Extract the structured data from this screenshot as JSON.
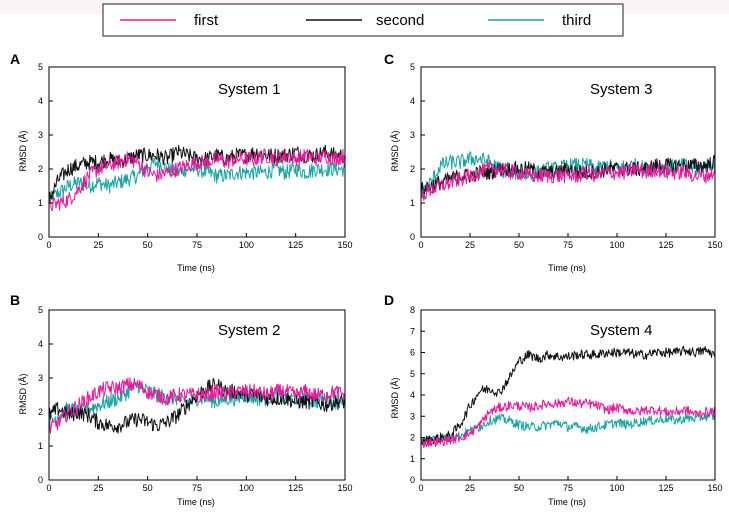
{
  "legend": {
    "items": [
      {
        "label": "first",
        "color": "#e8199c"
      },
      {
        "label": "second",
        "color": "#111111"
      },
      {
        "label": "third",
        "color": "#1aa3a3"
      }
    ]
  },
  "chart_data": [
    {
      "type": "line",
      "panel": "A",
      "title": "System 1",
      "xlabel": "Time (ns)",
      "ylabel": "RMSD (Å)",
      "xlim": [
        0,
        150
      ],
      "ylim": [
        0,
        5
      ],
      "xticks": [
        0,
        25,
        50,
        75,
        100,
        125,
        150
      ],
      "yticks": [
        0,
        1,
        2,
        3,
        4,
        5
      ],
      "series": [
        {
          "name": "first",
          "x": [
            0,
            5,
            10,
            15,
            20,
            25,
            30,
            35,
            40,
            45,
            50,
            55,
            60,
            65,
            70,
            75,
            80,
            85,
            90,
            95,
            100,
            105,
            110,
            115,
            120,
            125,
            130,
            135,
            140,
            145,
            150
          ],
          "y": [
            0.9,
            1.0,
            1.1,
            1.4,
            1.8,
            2.0,
            2.1,
            2.2,
            2.3,
            2.2,
            1.9,
            1.8,
            1.9,
            2.0,
            2.1,
            2.2,
            2.2,
            2.3,
            2.2,
            2.3,
            2.3,
            2.3,
            2.4,
            2.3,
            2.4,
            2.3,
            2.4,
            2.3,
            2.4,
            2.3,
            2.4
          ]
        },
        {
          "name": "second",
          "x": [
            0,
            5,
            10,
            15,
            20,
            25,
            30,
            35,
            40,
            45,
            50,
            55,
            60,
            65,
            70,
            75,
            80,
            85,
            90,
            95,
            100,
            105,
            110,
            115,
            120,
            125,
            130,
            135,
            140,
            145,
            150
          ],
          "y": [
            1.1,
            1.7,
            2.0,
            2.1,
            2.2,
            2.2,
            2.3,
            2.2,
            2.3,
            2.4,
            2.4,
            2.4,
            2.3,
            2.5,
            2.4,
            2.3,
            2.3,
            2.4,
            2.3,
            2.4,
            2.4,
            2.5,
            2.4,
            2.4,
            2.4,
            2.5,
            2.4,
            2.4,
            2.5,
            2.4,
            2.4
          ]
        },
        {
          "name": "third",
          "x": [
            0,
            5,
            10,
            15,
            20,
            25,
            30,
            35,
            40,
            45,
            50,
            55,
            60,
            65,
            70,
            75,
            80,
            85,
            90,
            95,
            100,
            105,
            110,
            115,
            120,
            125,
            130,
            135,
            140,
            145,
            150
          ],
          "y": [
            1.1,
            1.3,
            1.5,
            1.6,
            1.5,
            1.6,
            1.5,
            1.6,
            1.7,
            1.8,
            2.1,
            2.2,
            2.0,
            1.9,
            2.0,
            2.0,
            1.9,
            1.8,
            1.8,
            1.9,
            1.9,
            1.9,
            1.9,
            2.0,
            1.9,
            2.0,
            1.9,
            2.0,
            2.0,
            2.0,
            2.0
          ]
        }
      ]
    },
    {
      "type": "line",
      "panel": "B",
      "title": "System 2",
      "xlabel": "Time (ns)",
      "ylabel": "RMSD (Å)",
      "xlim": [
        0,
        150
      ],
      "ylim": [
        0,
        5
      ],
      "xticks": [
        0,
        25,
        50,
        75,
        100,
        125,
        150
      ],
      "yticks": [
        0,
        1,
        2,
        3,
        4,
        5
      ],
      "series": [
        {
          "name": "first",
          "x": [
            0,
            5,
            10,
            15,
            20,
            25,
            30,
            35,
            40,
            45,
            50,
            55,
            60,
            65,
            70,
            75,
            80,
            85,
            90,
            95,
            100,
            105,
            110,
            115,
            120,
            125,
            130,
            135,
            140,
            145,
            150
          ],
          "y": [
            1.5,
            1.7,
            2.0,
            2.2,
            2.4,
            2.6,
            2.7,
            2.7,
            2.8,
            2.8,
            2.6,
            2.5,
            2.4,
            2.5,
            2.5,
            2.5,
            2.5,
            2.6,
            2.5,
            2.6,
            2.6,
            2.6,
            2.5,
            2.6,
            2.6,
            2.5,
            2.6,
            2.5,
            2.5,
            2.6,
            2.5
          ]
        },
        {
          "name": "second",
          "x": [
            0,
            5,
            10,
            15,
            20,
            25,
            30,
            35,
            40,
            45,
            50,
            55,
            60,
            65,
            70,
            75,
            80,
            85,
            90,
            95,
            100,
            105,
            110,
            115,
            120,
            125,
            130,
            135,
            140,
            145,
            150
          ],
          "y": [
            1.9,
            2.1,
            1.9,
            2.0,
            1.9,
            1.7,
            1.6,
            1.6,
            1.7,
            1.8,
            1.7,
            1.6,
            1.7,
            1.9,
            2.2,
            2.5,
            2.7,
            2.8,
            2.6,
            2.6,
            2.5,
            2.5,
            2.4,
            2.4,
            2.4,
            2.3,
            2.3,
            2.3,
            2.2,
            2.3,
            2.3
          ]
        },
        {
          "name": "third",
          "x": [
            0,
            5,
            10,
            15,
            20,
            25,
            30,
            35,
            40,
            45,
            50,
            55,
            60,
            65,
            70,
            75,
            80,
            85,
            90,
            95,
            100,
            105,
            110,
            115,
            120,
            125,
            130,
            135,
            140,
            145,
            150
          ],
          "y": [
            1.7,
            1.9,
            2.1,
            2.0,
            2.1,
            2.2,
            2.3,
            2.4,
            2.6,
            2.8,
            2.6,
            2.5,
            2.4,
            2.4,
            2.3,
            2.4,
            2.4,
            2.3,
            2.4,
            2.4,
            2.5,
            2.4,
            2.4,
            2.5,
            2.4,
            2.4,
            2.4,
            2.3,
            2.4,
            2.3,
            2.4
          ]
        }
      ]
    },
    {
      "type": "line",
      "panel": "C",
      "title": "System 3",
      "xlabel": "Time (ns)",
      "ylabel": "RMSD (Å)",
      "xlim": [
        0,
        150
      ],
      "ylim": [
        0,
        5
      ],
      "xticks": [
        0,
        25,
        50,
        75,
        100,
        125,
        150
      ],
      "yticks": [
        0,
        1,
        2,
        3,
        4,
        5
      ],
      "series": [
        {
          "name": "first",
          "x": [
            0,
            5,
            10,
            15,
            20,
            25,
            30,
            35,
            40,
            45,
            50,
            55,
            60,
            65,
            70,
            75,
            80,
            85,
            90,
            95,
            100,
            105,
            110,
            115,
            120,
            125,
            130,
            135,
            140,
            145,
            150
          ],
          "y": [
            1.2,
            1.4,
            1.5,
            1.6,
            1.7,
            1.8,
            1.9,
            2.0,
            2.0,
            1.9,
            1.9,
            1.8,
            1.8,
            1.8,
            1.8,
            1.8,
            1.8,
            1.9,
            1.8,
            1.9,
            1.9,
            1.9,
            2.0,
            1.9,
            2.0,
            1.9,
            1.9,
            1.9,
            1.8,
            1.8,
            1.9
          ]
        },
        {
          "name": "second",
          "x": [
            0,
            5,
            10,
            15,
            20,
            25,
            30,
            35,
            40,
            45,
            50,
            55,
            60,
            65,
            70,
            75,
            80,
            85,
            90,
            95,
            100,
            105,
            110,
            115,
            120,
            125,
            130,
            135,
            140,
            145,
            150
          ],
          "y": [
            1.4,
            1.5,
            1.6,
            1.7,
            1.8,
            1.8,
            1.9,
            1.9,
            2.0,
            2.0,
            2.0,
            2.0,
            1.9,
            1.9,
            1.9,
            2.0,
            1.9,
            1.9,
            1.9,
            2.0,
            2.0,
            2.0,
            2.0,
            2.0,
            2.1,
            2.1,
            2.1,
            2.1,
            2.1,
            2.1,
            2.2
          ]
        },
        {
          "name": "third",
          "x": [
            0,
            5,
            10,
            15,
            20,
            25,
            30,
            35,
            40,
            45,
            50,
            55,
            60,
            65,
            70,
            75,
            80,
            85,
            90,
            95,
            100,
            105,
            110,
            115,
            120,
            125,
            130,
            135,
            140,
            145,
            150
          ],
          "y": [
            1.3,
            1.6,
            2.1,
            2.2,
            2.2,
            2.3,
            2.3,
            2.2,
            2.0,
            1.9,
            1.9,
            1.8,
            1.9,
            2.0,
            2.0,
            2.1,
            2.1,
            2.1,
            2.0,
            2.1,
            2.0,
            2.1,
            2.1,
            2.0,
            2.1,
            2.0,
            2.1,
            2.1,
            2.0,
            2.1,
            2.2
          ]
        }
      ]
    },
    {
      "type": "line",
      "panel": "D",
      "title": "System 4",
      "xlabel": "Time (ns)",
      "ylabel": "RMSD (Å)",
      "xlim": [
        0,
        150
      ],
      "ylim": [
        0,
        8
      ],
      "xticks": [
        0,
        25,
        50,
        75,
        100,
        125,
        150
      ],
      "yticks": [
        0,
        1,
        2,
        3,
        4,
        5,
        6,
        7,
        8
      ],
      "series": [
        {
          "name": "first",
          "x": [
            0,
            5,
            10,
            15,
            20,
            25,
            30,
            35,
            40,
            45,
            50,
            55,
            60,
            65,
            70,
            75,
            80,
            85,
            90,
            95,
            100,
            105,
            110,
            115,
            120,
            125,
            130,
            135,
            140,
            145,
            150
          ],
          "y": [
            1.7,
            1.8,
            1.8,
            1.9,
            2.0,
            2.2,
            2.6,
            3.2,
            3.4,
            3.5,
            3.5,
            3.4,
            3.5,
            3.6,
            3.6,
            3.7,
            3.6,
            3.6,
            3.5,
            3.3,
            3.4,
            3.3,
            3.2,
            3.3,
            3.3,
            3.2,
            3.2,
            3.3,
            3.1,
            3.2,
            3.2
          ]
        },
        {
          "name": "second",
          "x": [
            0,
            5,
            10,
            15,
            20,
            25,
            30,
            35,
            40,
            45,
            50,
            55,
            60,
            65,
            70,
            75,
            80,
            85,
            90,
            95,
            100,
            105,
            110,
            115,
            120,
            125,
            130,
            135,
            140,
            145,
            150
          ],
          "y": [
            1.8,
            1.9,
            2.0,
            2.1,
            2.6,
            3.5,
            4.2,
            4.3,
            4.1,
            4.8,
            5.6,
            5.9,
            5.7,
            5.9,
            5.8,
            5.8,
            5.9,
            5.9,
            5.9,
            6.0,
            6.0,
            6.0,
            5.9,
            5.9,
            6.0,
            6.0,
            6.0,
            6.1,
            6.0,
            6.1,
            5.9
          ]
        },
        {
          "name": "third",
          "x": [
            0,
            5,
            10,
            15,
            20,
            25,
            30,
            35,
            40,
            45,
            50,
            55,
            60,
            65,
            70,
            75,
            80,
            85,
            90,
            95,
            100,
            105,
            110,
            115,
            120,
            125,
            130,
            135,
            140,
            145,
            150
          ],
          "y": [
            1.8,
            1.9,
            2.0,
            2.0,
            2.1,
            2.3,
            2.5,
            2.8,
            2.9,
            2.8,
            2.6,
            2.5,
            2.5,
            2.6,
            2.7,
            2.5,
            2.5,
            2.4,
            2.5,
            2.6,
            2.7,
            2.6,
            2.7,
            2.8,
            2.8,
            2.9,
            2.8,
            2.9,
            2.9,
            3.0,
            3.0
          ]
        }
      ]
    }
  ]
}
